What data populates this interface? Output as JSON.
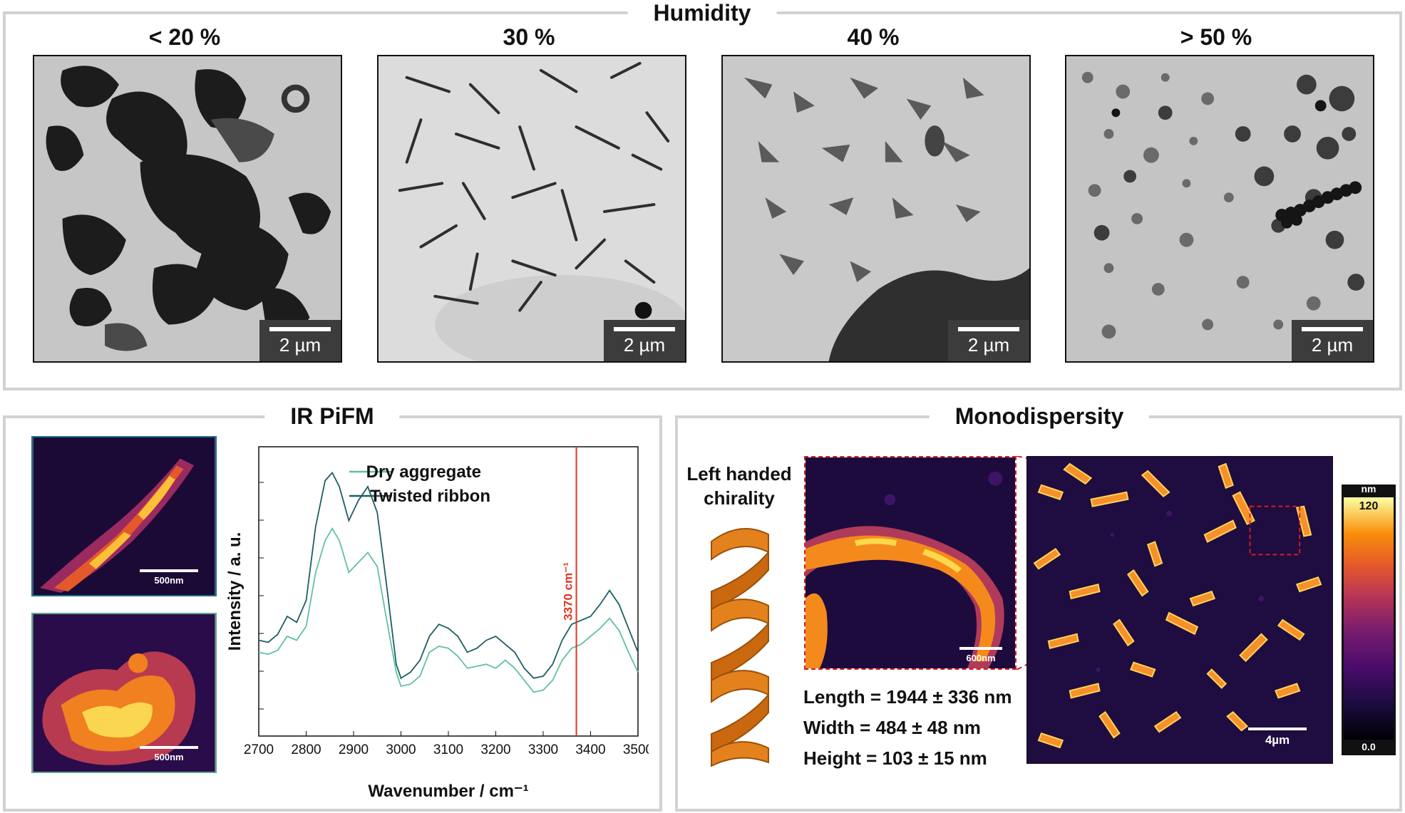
{
  "humidity": {
    "title": "Humidity",
    "panels": [
      {
        "label": "< 20 %",
        "scale": "2 µm"
      },
      {
        "label": "30 %",
        "scale": "2 µm"
      },
      {
        "label": "40 %",
        "scale": "2 µm"
      },
      {
        "label": "> 50 %",
        "scale": "2 µm"
      }
    ]
  },
  "ir_pifm": {
    "title": "IR PiFM",
    "afm_top_scale": "500nm",
    "afm_bottom_scale": "500nm",
    "chart_data": {
      "type": "line",
      "xlabel": "Wavenumber / cm⁻¹",
      "ylabel": "Intensity / a. u.",
      "xlim": [
        2700,
        3500
      ],
      "x_ticks": [
        2700,
        2800,
        2900,
        3000,
        3100,
        3200,
        3300,
        3400,
        3500
      ],
      "marker_line": {
        "x": 3370,
        "label": "3370 cm⁻¹",
        "color": "#e0361f"
      },
      "series": [
        {
          "name": "Dry aggregate",
          "color": "#5fc1a3",
          "x": [
            2700,
            2720,
            2740,
            2760,
            2780,
            2800,
            2820,
            2840,
            2855,
            2870,
            2890,
            2910,
            2930,
            2950,
            2970,
            2990,
            3000,
            3020,
            3040,
            3060,
            3080,
            3100,
            3120,
            3140,
            3160,
            3180,
            3200,
            3220,
            3240,
            3260,
            3280,
            3300,
            3320,
            3340,
            3360,
            3380,
            3400,
            3420,
            3440,
            3460,
            3480,
            3500
          ],
          "y": [
            0.22,
            0.21,
            0.23,
            0.3,
            0.28,
            0.35,
            0.62,
            0.78,
            0.84,
            0.78,
            0.62,
            0.67,
            0.72,
            0.65,
            0.38,
            0.12,
            0.05,
            0.06,
            0.1,
            0.22,
            0.25,
            0.24,
            0.2,
            0.14,
            0.15,
            0.16,
            0.14,
            0.18,
            0.14,
            0.08,
            0.02,
            0.03,
            0.08,
            0.18,
            0.24,
            0.26,
            0.3,
            0.34,
            0.39,
            0.33,
            0.22,
            0.12
          ]
        },
        {
          "name": "Twisted ribbon",
          "color": "#1d5e63",
          "x": [
            2700,
            2720,
            2740,
            2760,
            2780,
            2800,
            2820,
            2840,
            2855,
            2870,
            2890,
            2910,
            2930,
            2950,
            2970,
            2990,
            3000,
            3020,
            3040,
            3060,
            3080,
            3100,
            3120,
            3140,
            3160,
            3180,
            3200,
            3220,
            3240,
            3260,
            3280,
            3300,
            3320,
            3340,
            3360,
            3380,
            3400,
            3420,
            3440,
            3460,
            3480,
            3500
          ],
          "y": [
            0.28,
            0.27,
            0.31,
            0.4,
            0.37,
            0.48,
            0.85,
            1.08,
            1.12,
            1.05,
            0.88,
            0.98,
            1.05,
            0.92,
            0.55,
            0.16,
            0.09,
            0.12,
            0.18,
            0.3,
            0.36,
            0.34,
            0.3,
            0.22,
            0.24,
            0.28,
            0.3,
            0.26,
            0.22,
            0.14,
            0.09,
            0.1,
            0.16,
            0.28,
            0.36,
            0.38,
            0.4,
            0.46,
            0.53,
            0.46,
            0.34,
            0.22
          ]
        }
      ]
    }
  },
  "monodispersity": {
    "title": "Monodispersity",
    "chirality_label_1": "Left handed",
    "chirality_label_2": "chirality",
    "zoom_scale": "600nm",
    "main_scale": "4µm",
    "length": "Length = 1944 ± 336 nm",
    "width": "Width = 484 ± 48 nm",
    "height": "Height = 103 ± 15 nm",
    "colorbar_unit": "nm",
    "colorbar_max": "120",
    "colorbar_min": "0.0"
  },
  "colors": {
    "panel_border": "#d2d2d2",
    "zoom_outline": "#d11f1f"
  }
}
